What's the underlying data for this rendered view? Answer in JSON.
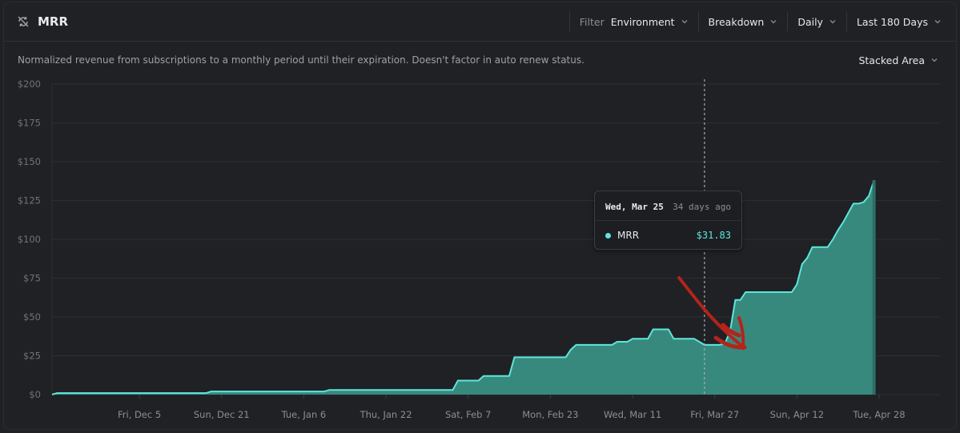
{
  "header": {
    "title": "MRR",
    "title_icon": "refresh-off-icon",
    "filter_label": "Filter",
    "filter_value": "Environment",
    "breakdown": "Breakdown",
    "resolution": "Daily",
    "range": "Last 180 Days"
  },
  "subheader": {
    "description": "Normalized revenue from subscriptions to a monthly period until their expiration. Doesn't factor in auto renew status.",
    "view_type": "Stacked Area"
  },
  "tooltip": {
    "date": "Wed, Mar 25",
    "ago": "34 days ago",
    "series": "MRR",
    "value": "$31.83"
  },
  "colors": {
    "line": "#5ee6dc",
    "area": "#3a8f82",
    "annotation": "#b3241b"
  },
  "chart_data": {
    "type": "area",
    "ylim": [
      0,
      200
    ],
    "yticks": [
      "$0",
      "$25",
      "$50",
      "$75",
      "$100",
      "$125",
      "$150",
      "$175",
      "$200"
    ],
    "xlim": [
      0,
      173
    ],
    "xticks": [
      {
        "label": "Fri, Dec 5",
        "x": 17
      },
      {
        "label": "Sun, Dec 21",
        "x": 33
      },
      {
        "label": "Tue, Jan 6",
        "x": 49
      },
      {
        "label": "Thu, Jan 22",
        "x": 65
      },
      {
        "label": "Sat, Feb 7",
        "x": 81
      },
      {
        "label": "Mon, Feb 23",
        "x": 97
      },
      {
        "label": "Wed, Mar 11",
        "x": 113
      },
      {
        "label": "Fri, Mar 27",
        "x": 129
      },
      {
        "label": "Sun, Apr 12",
        "x": 145
      },
      {
        "label": "Tue, Apr 28",
        "x": 161
      }
    ],
    "hover_x": 127,
    "series": [
      {
        "name": "MRR",
        "points": [
          [
            0,
            0
          ],
          [
            1,
            1
          ],
          [
            3,
            1
          ],
          [
            10,
            1
          ],
          [
            30,
            1
          ],
          [
            31,
            2
          ],
          [
            53,
            2
          ],
          [
            54,
            3
          ],
          [
            78,
            3
          ],
          [
            79,
            9
          ],
          [
            83,
            9
          ],
          [
            84,
            12
          ],
          [
            89,
            12
          ],
          [
            90,
            24
          ],
          [
            100,
            24
          ],
          [
            101,
            29
          ],
          [
            102,
            32
          ],
          [
            109,
            32
          ],
          [
            110,
            34
          ],
          [
            112,
            34
          ],
          [
            113,
            36
          ],
          [
            116,
            36
          ],
          [
            117,
            42
          ],
          [
            120,
            42
          ],
          [
            121,
            36
          ],
          [
            125,
            36
          ],
          [
            127,
            32
          ],
          [
            130,
            32
          ],
          [
            131,
            33
          ],
          [
            132,
            41
          ],
          [
            133,
            61
          ],
          [
            134,
            61
          ],
          [
            135,
            66
          ],
          [
            141,
            66
          ],
          [
            142,
            66
          ],
          [
            144,
            66
          ],
          [
            145,
            71
          ],
          [
            146,
            84
          ],
          [
            147,
            88
          ],
          [
            148,
            95
          ],
          [
            150,
            95
          ],
          [
            151,
            95
          ],
          [
            152,
            100
          ],
          [
            153,
            106
          ],
          [
            154,
            111
          ],
          [
            155,
            117
          ],
          [
            156,
            123
          ],
          [
            157,
            123
          ],
          [
            158,
            124
          ],
          [
            159,
            128
          ],
          [
            160,
            138
          ]
        ]
      }
    ]
  }
}
